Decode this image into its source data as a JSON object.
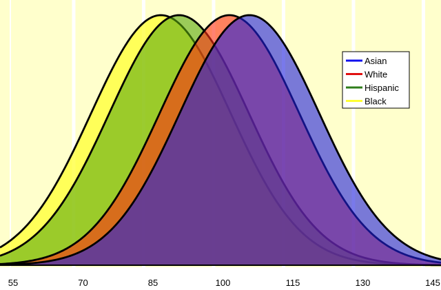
{
  "chart_data": {
    "type": "area",
    "title": "",
    "xlabel": "",
    "ylabel": "",
    "xlim": [
      49,
      147
    ],
    "x_ticks": [
      55,
      70,
      85,
      100,
      115,
      130,
      145
    ],
    "x_tick_labels": [
      "55",
      "70",
      "85",
      "100",
      "115",
      "130",
      "145"
    ],
    "y_axis_shown": false,
    "grid": "vertical white gridlines at 15-point intervals on a pale yellow plot background",
    "legend_position": "top-right",
    "curve_shape": "normal distribution",
    "series": [
      {
        "name": "Black",
        "mean": 86.7,
        "sd": 15,
        "line_color": "#ffff33",
        "fill_color": "#ffff33",
        "order": 1
      },
      {
        "name": "Hispanic",
        "mean": 90.6,
        "sd": 15,
        "line_color": "#2e7d1a",
        "fill_color": "#58a80c",
        "order": 2
      },
      {
        "name": "White",
        "mean": 101.4,
        "sd": 15,
        "line_color": "#e01010",
        "fill_color": "#ff2e14",
        "order": 3
      },
      {
        "name": "Asian",
        "mean": 105.7,
        "sd": 15,
        "line_color": "#1010ee",
        "fill_color": "#2020dd",
        "order": 4
      }
    ],
    "legend_entries": [
      "Asian",
      "White",
      "Hispanic",
      "Black"
    ]
  },
  "colors": {
    "plot_background": "#ffffcc",
    "gridline": "#ffffff",
    "outline": "#000000"
  }
}
